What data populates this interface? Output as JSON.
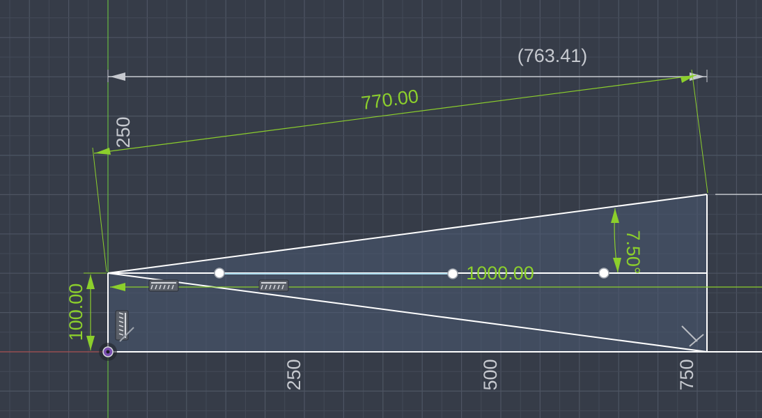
{
  "colors": {
    "background": "#363c48",
    "grid_minor": "#434a57",
    "grid_major": "#4e5563",
    "sketch_line": "#ffffff",
    "dimension_driving": "#8ccf2c",
    "dimension_reference": "#c6c9cf",
    "profile_fill": "#4a5a72",
    "origin_x_axis": "#c0504d",
    "origin_y_axis": "#6ccf3a"
  },
  "dimensions": {
    "top_reference": "(763.41)",
    "diagonal_length": "770.00",
    "center_length": "1000.00",
    "left_height": "100.00",
    "angle": "7.50°",
    "vertical_250": "250"
  },
  "axis_labels": {
    "x_250": "250",
    "x_500": "500",
    "x_750": "750"
  },
  "icons": {
    "origin": "origin-point-icon",
    "horizontal_constraint": "horizontal-constraint-icon",
    "vertical_constraint": "vertical-constraint-icon",
    "perpendicular_constraint": "perpendicular-constraint-icon"
  }
}
